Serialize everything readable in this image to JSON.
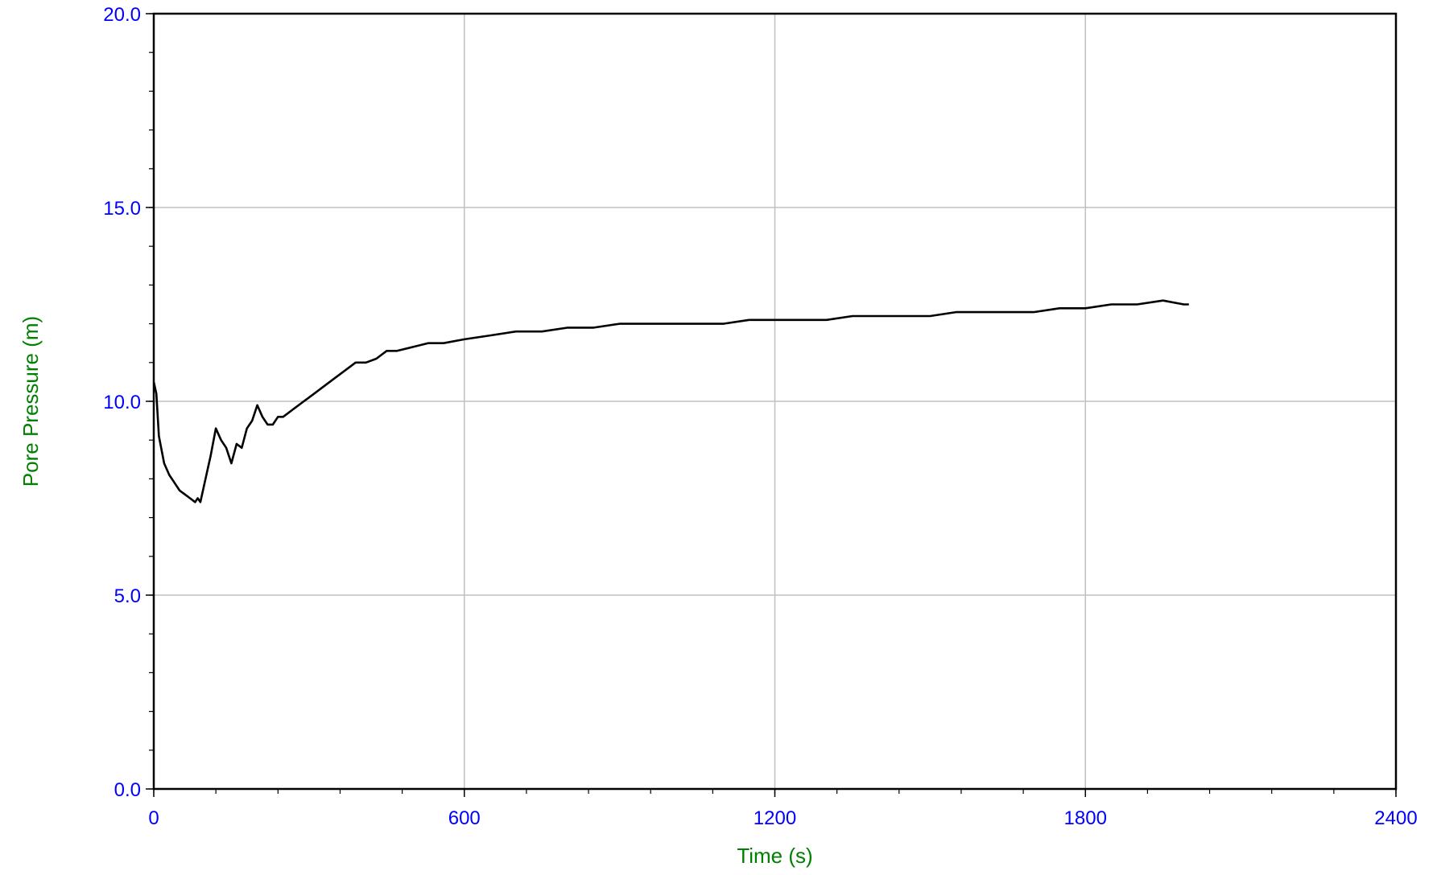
{
  "chart_data": {
    "type": "line",
    "title": "",
    "xlabel": "Time (s)",
    "ylabel": "Pore Pressure (m)",
    "xlim": [
      0,
      2400
    ],
    "ylim": [
      0,
      20
    ],
    "x_ticks": [
      "0",
      "600",
      "1200",
      "1800",
      "2400"
    ],
    "y_ticks": [
      "0.0",
      "5.0",
      "10.0",
      "15.0",
      "20.0"
    ],
    "grid": true,
    "colors": {
      "line": "#000000",
      "grid": "#c0c0c0",
      "tick_labels": "#0000ff",
      "axis_titles": "#008000"
    },
    "series": [
      {
        "x": [
          0,
          5,
          10,
          20,
          30,
          40,
          50,
          60,
          70,
          80,
          85,
          90,
          100,
          110,
          120,
          130,
          140,
          150,
          160,
          170,
          180,
          190,
          200,
          210,
          220,
          230,
          240,
          250,
          270,
          290,
          310,
          330,
          350,
          370,
          390,
          410,
          430,
          450,
          470,
          500,
          530,
          560,
          600,
          650,
          700,
          750,
          800,
          850,
          900,
          950,
          1000,
          1050,
          1100,
          1150,
          1200,
          1250,
          1300,
          1350,
          1400,
          1450,
          1500,
          1550,
          1600,
          1650,
          1700,
          1750,
          1800,
          1850,
          1900,
          1950,
          1990,
          2000
        ],
        "y": [
          10.5,
          10.2,
          9.1,
          8.4,
          8.1,
          7.9,
          7.7,
          7.6,
          7.5,
          7.4,
          7.5,
          7.4,
          8.0,
          8.6,
          9.3,
          9.0,
          8.8,
          8.4,
          8.9,
          8.8,
          9.3,
          9.5,
          9.9,
          9.6,
          9.4,
          9.4,
          9.6,
          9.6,
          9.8,
          10.0,
          10.2,
          10.4,
          10.6,
          10.8,
          11.0,
          11.0,
          11.1,
          11.3,
          11.3,
          11.4,
          11.5,
          11.5,
          11.6,
          11.7,
          11.8,
          11.8,
          11.9,
          11.9,
          12.0,
          12.0,
          12.0,
          12.0,
          12.0,
          12.1,
          12.1,
          12.1,
          12.1,
          12.2,
          12.2,
          12.2,
          12.2,
          12.3,
          12.3,
          12.3,
          12.3,
          12.4,
          12.4,
          12.5,
          12.5,
          12.6,
          12.5,
          12.5
        ]
      }
    ]
  }
}
